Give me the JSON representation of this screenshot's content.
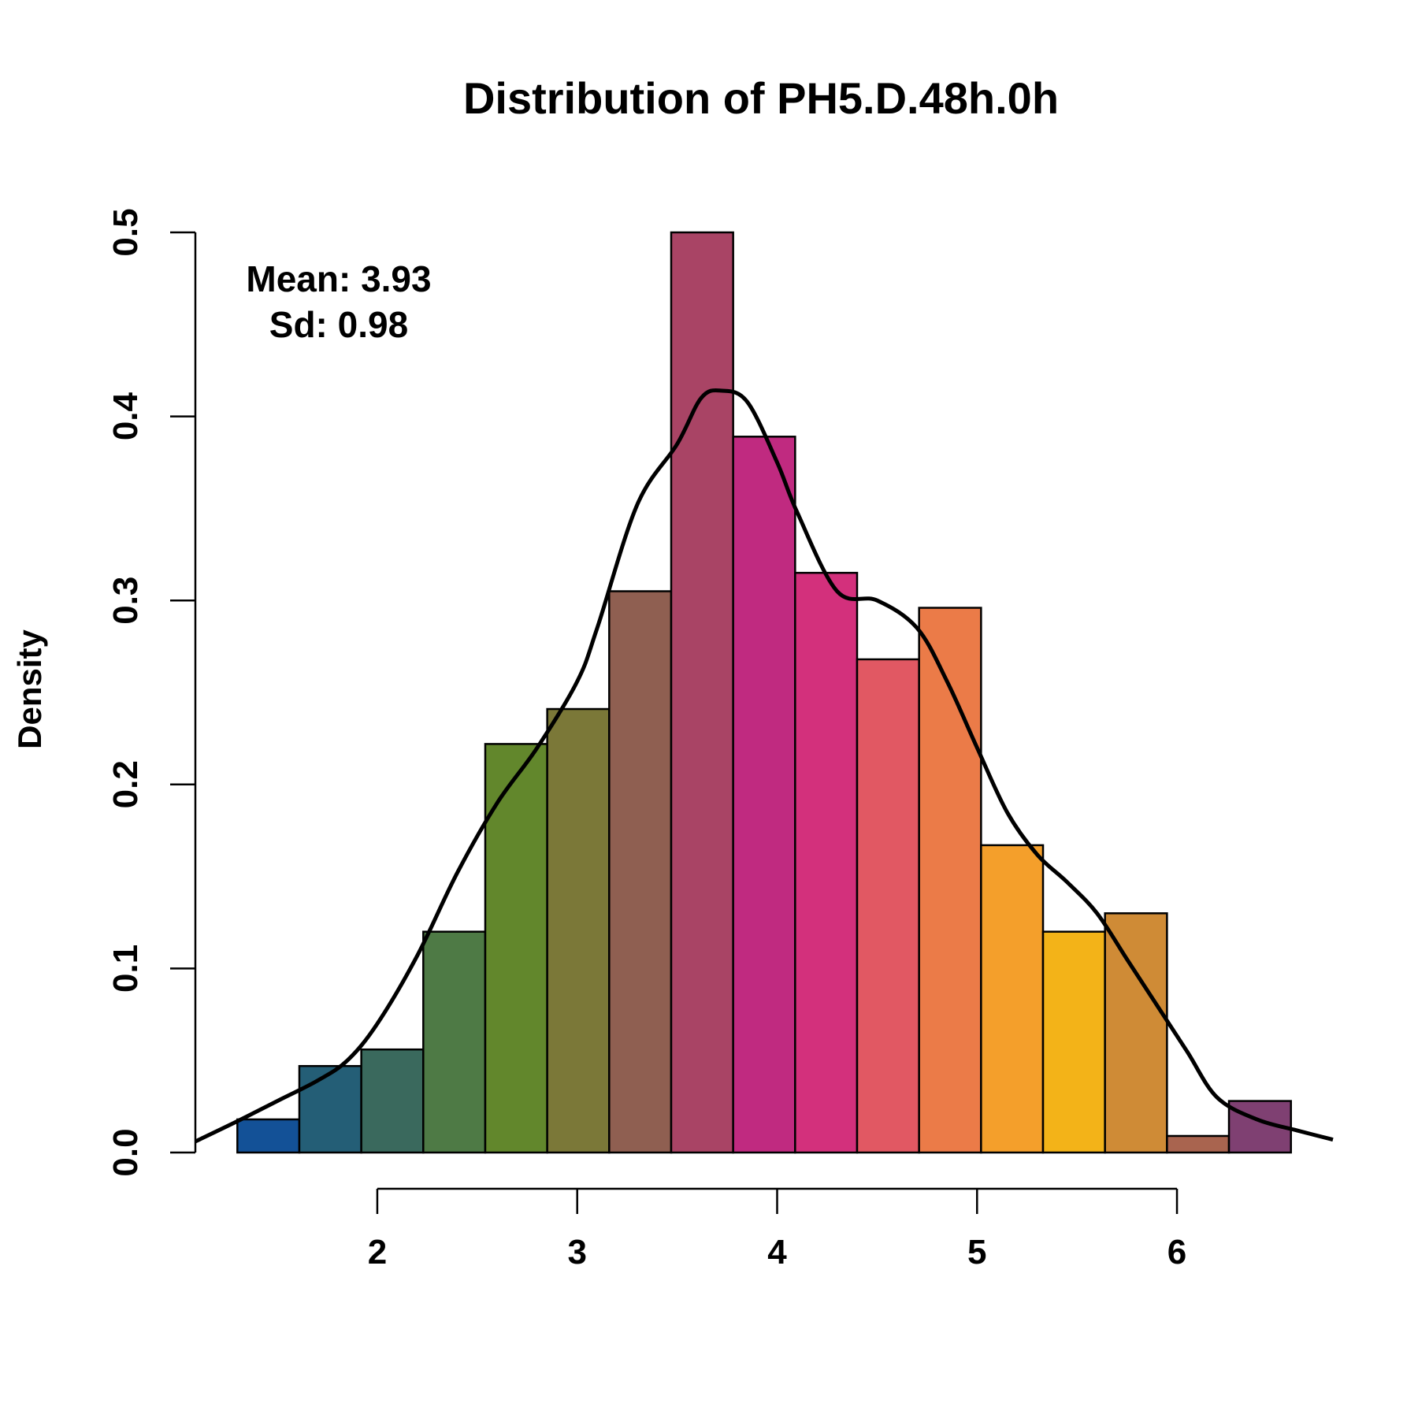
{
  "chart_data": {
    "type": "bar",
    "title": "Distribution of PH5.D.48h.0h",
    "xlabel": "",
    "ylabel": "Density",
    "xlim": [
      1.09,
      6.78
    ],
    "ylim": [
      0,
      0.5
    ],
    "x_ticks": [
      "2",
      "3",
      "4",
      "5",
      "6"
    ],
    "x_tick_values": [
      2,
      3,
      4,
      5,
      6
    ],
    "y_ticks": [
      "0.0",
      "0.1",
      "0.2",
      "0.3",
      "0.4",
      "0.5"
    ],
    "y_tick_values": [
      0,
      0.1,
      0.2,
      0.3,
      0.4,
      0.5
    ],
    "bin_edges": [
      1.3,
      1.61,
      1.92,
      2.23,
      2.54,
      2.85,
      3.16,
      3.47,
      3.78,
      4.09,
      4.4,
      4.71,
      5.02,
      5.33,
      5.64,
      5.95,
      6.26,
      6.57
    ],
    "values": [
      0.018,
      0.047,
      0.056,
      0.12,
      0.222,
      0.241,
      0.305,
      0.5,
      0.389,
      0.315,
      0.268,
      0.296,
      0.167,
      0.12,
      0.13,
      0.009,
      0.028
    ],
    "bar_colors": [
      "#135197",
      "#245E76",
      "#3A695D",
      "#4E7A45",
      "#62872C",
      "#7B7838",
      "#8F5F51",
      "#A94465",
      "#C02A80",
      "#D3307C",
      "#E15863",
      "#EB7B48",
      "#F49F2B",
      "#F3B318",
      "#CF8B36",
      "#A9644F",
      "#7F4072"
    ],
    "density_curve": {
      "x": [
        1.09,
        1.3,
        1.5,
        1.7,
        1.85,
        2.0,
        2.2,
        2.4,
        2.6,
        2.8,
        3.0,
        3.1,
        3.3,
        3.5,
        3.62,
        3.72,
        3.85,
        4.0,
        4.1,
        4.3,
        4.5,
        4.7,
        4.85,
        5.0,
        5.15,
        5.3,
        5.45,
        5.6,
        5.75,
        5.9,
        6.05,
        6.2,
        6.4,
        6.6,
        6.78
      ],
      "y": [
        0.006,
        0.017,
        0.028,
        0.039,
        0.05,
        0.07,
        0.107,
        0.152,
        0.19,
        0.22,
        0.256,
        0.285,
        0.352,
        0.385,
        0.41,
        0.414,
        0.408,
        0.375,
        0.348,
        0.305,
        0.3,
        0.285,
        0.256,
        0.22,
        0.185,
        0.162,
        0.147,
        0.13,
        0.105,
        0.08,
        0.055,
        0.03,
        0.018,
        0.012,
        0.007
      ]
    },
    "annotations": [
      "Mean: 3.93",
      "Sd: 0.98"
    ],
    "grid": false,
    "legend": "none"
  }
}
